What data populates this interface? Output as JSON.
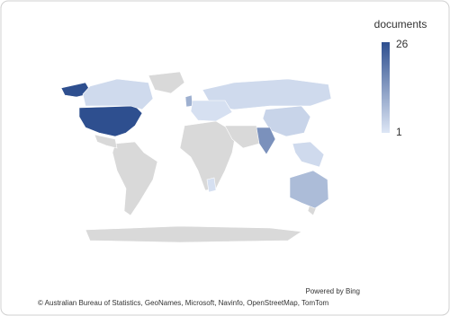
{
  "chart_data": {
    "type": "map",
    "legend_title": "documents",
    "scale": {
      "min": 1,
      "max": 26,
      "min_color": "#dde6f5",
      "max_color": "#2e4f8f"
    },
    "values": [
      26,
      3,
      3,
      4,
      15,
      8,
      10,
      2,
      3,
      2
    ]
  },
  "credits": {
    "powered": "Powered by Bing",
    "attribution": "© Australian Bureau of Statistics, GeoNames, Microsoft, Navinfo, OpenStreetMap, TomTom"
  }
}
